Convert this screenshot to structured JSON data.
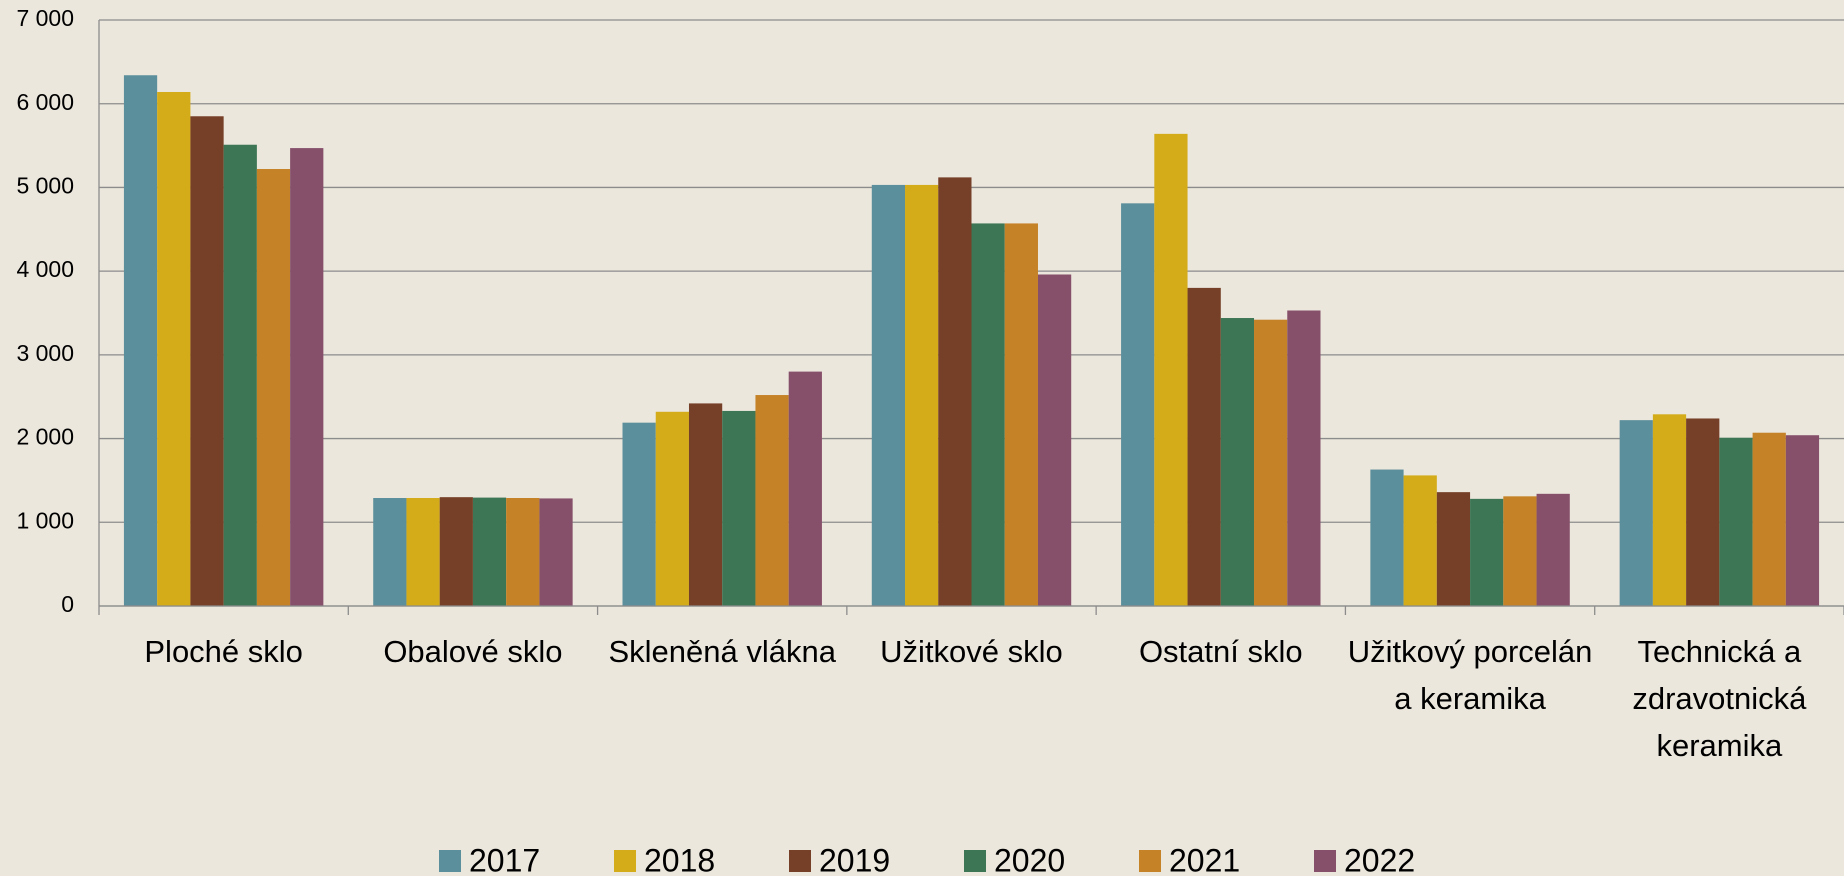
{
  "chart_data": {
    "type": "bar",
    "categories": [
      "Ploché sklo",
      "Obalové sklo",
      "Skleněná vlákna",
      "Užitkové sklo",
      "Ostatní sklo",
      "Užitkový porcelán a keramika",
      "Technická a zdravotnická keramika"
    ],
    "series": [
      {
        "name": "2017",
        "color": "#5b8f9b",
        "values": [
          6340,
          1290,
          2190,
          5030,
          4810,
          1630,
          2220
        ]
      },
      {
        "name": "2018",
        "color": "#d4ac1a",
        "values": [
          6140,
          1290,
          2320,
          5030,
          5640,
          1560,
          2290
        ]
      },
      {
        "name": "2019",
        "color": "#763f27",
        "values": [
          5850,
          1300,
          2420,
          5120,
          3800,
          1360,
          2240
        ]
      },
      {
        "name": "2020",
        "color": "#3d7655",
        "values": [
          5510,
          1295,
          2330,
          4570,
          3440,
          1280,
          2010
        ]
      },
      {
        "name": "2021",
        "color": "#c58226",
        "values": [
          5220,
          1290,
          2520,
          4570,
          3420,
          1310,
          2070
        ]
      },
      {
        "name": "2022",
        "color": "#86506b",
        "values": [
          5470,
          1285,
          2800,
          3960,
          3530,
          1340,
          2040
        ]
      }
    ],
    "ylim": [
      0,
      7000
    ],
    "yticks": [
      0,
      {
        "value": 1000,
        "label": "1 000"
      },
      {
        "value": 2000,
        "label": "2 000"
      },
      {
        "value": 3000,
        "label": "3 000"
      },
      {
        "value": 4000,
        "label": "4 000"
      },
      {
        "value": 5000,
        "label": "5 000"
      },
      {
        "value": 6000,
        "label": "6 000"
      },
      {
        "value": 7000,
        "label": "7 000"
      }
    ],
    "grid": true,
    "legend": "bottom"
  }
}
